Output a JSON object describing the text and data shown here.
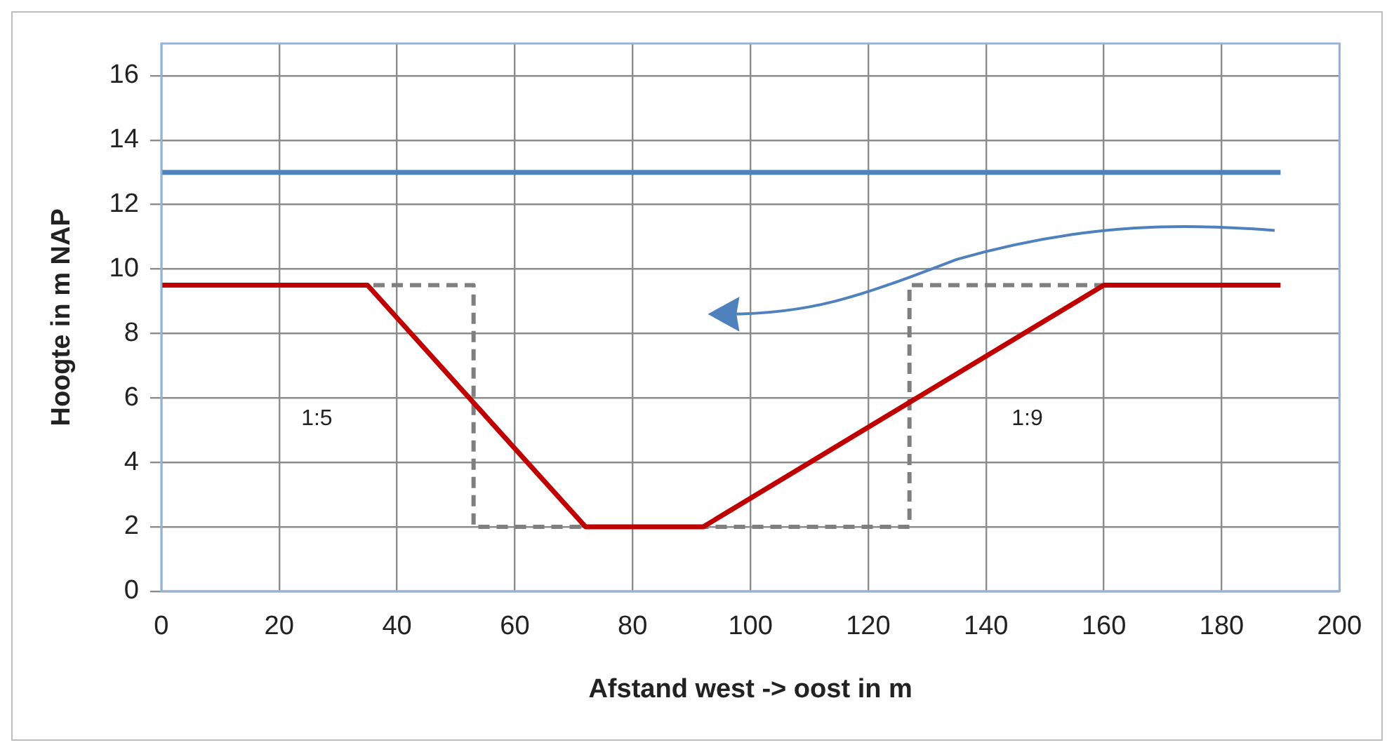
{
  "chart_data": {
    "type": "line",
    "xlabel": "Afstand west -> oost in m",
    "ylabel": "Hoogte in m NAP",
    "xlim": [
      0,
      200
    ],
    "xticks": [
      0,
      20,
      40,
      60,
      80,
      100,
      120,
      140,
      160,
      180,
      200
    ],
    "ylim": [
      0,
      17
    ],
    "yticks": [
      0,
      2,
      4,
      6,
      8,
      10,
      12,
      14,
      16
    ],
    "grid": true,
    "legend": false,
    "marker": "none",
    "series": [
      {
        "color": "#4f81bd",
        "x": [
          0,
          190
        ],
        "values": [
          13,
          13
        ],
        "line_style": "solid"
      },
      {
        "color": "#c00000",
        "x": [
          0,
          35,
          72,
          92,
          160,
          190
        ],
        "values": [
          9.5,
          9.5,
          2,
          2,
          9.5,
          9.5
        ],
        "line_style": "solid"
      },
      {
        "color": "#7f7f7f",
        "x": [
          36,
          53,
          53,
          127,
          127,
          160
        ],
        "values": [
          9.5,
          9.5,
          2,
          2,
          9.5,
          9.5
        ],
        "line_style": "dashed"
      }
    ],
    "annotations": [
      "1:5",
      "1:9"
    ]
  }
}
